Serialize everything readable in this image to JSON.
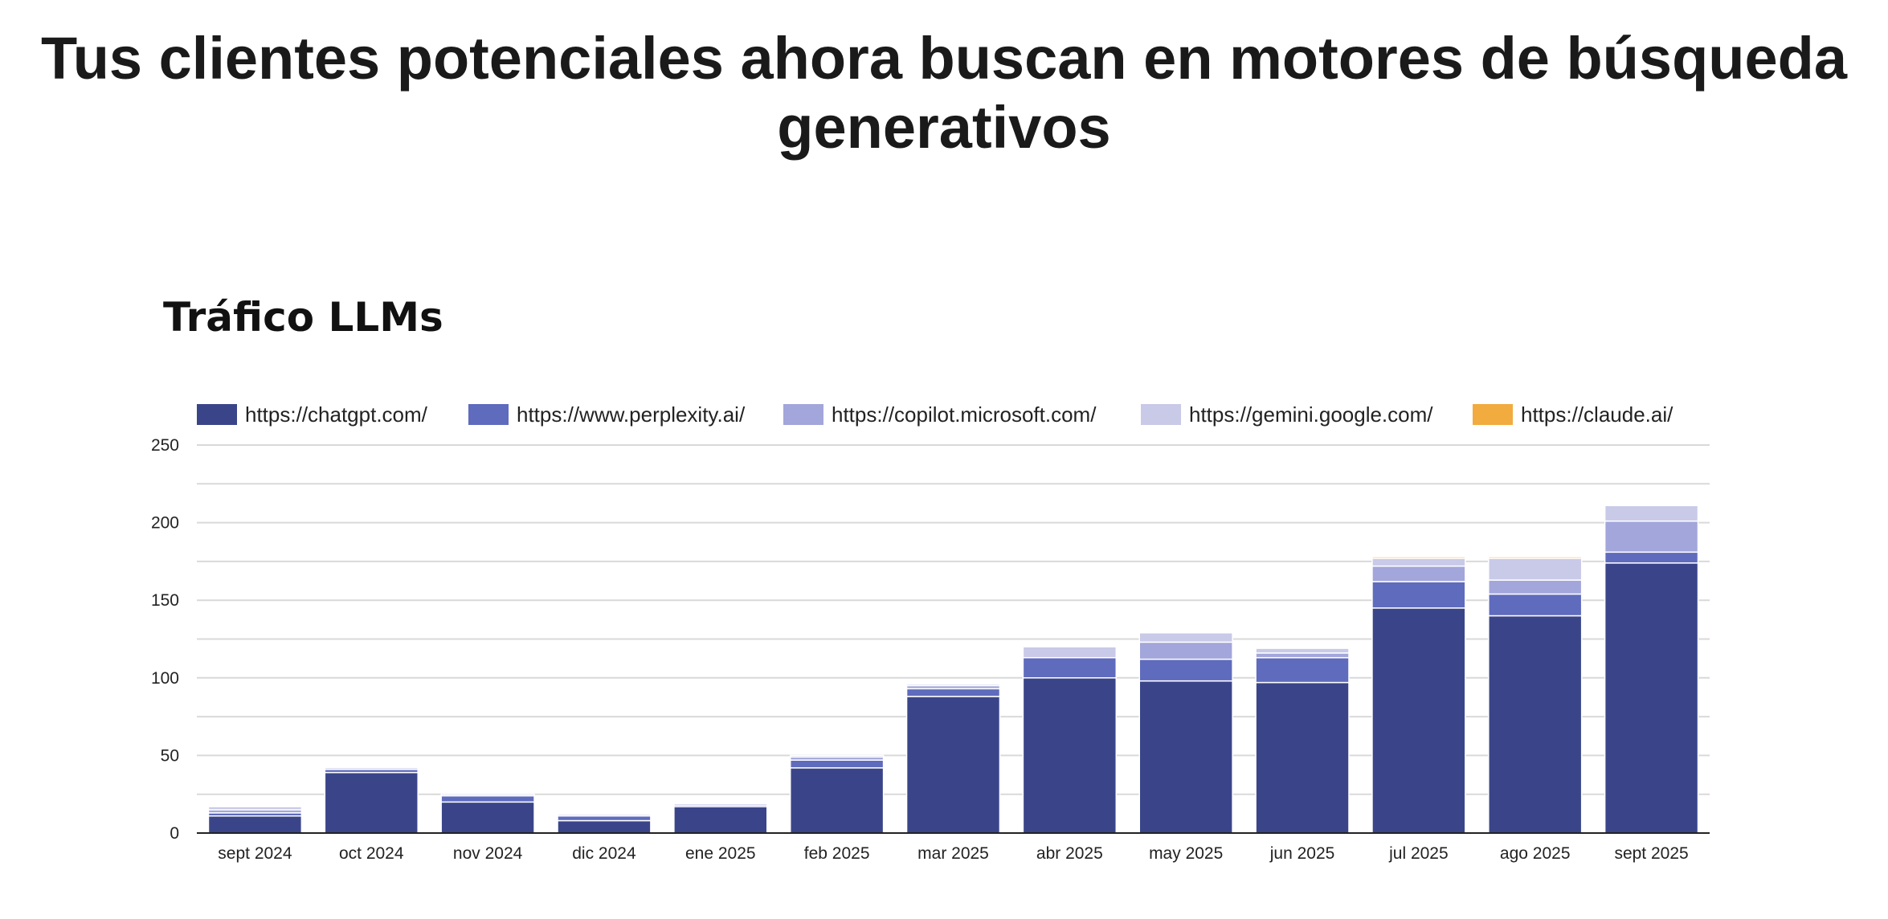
{
  "page": {
    "headline": "Tus clientes potenciales ahora buscan en motores de búsqueda generativos"
  },
  "chart_data": {
    "type": "bar",
    "stacked": true,
    "title": "Tráfico LLMs",
    "xlabel": "",
    "ylabel": "",
    "ylim": [
      0,
      250
    ],
    "yticks": [
      0,
      50,
      100,
      150,
      200,
      250
    ],
    "grid": true,
    "legend_position": "top",
    "categories": [
      "sept 2024",
      "oct 2024",
      "nov 2024",
      "dic 2024",
      "ene 2025",
      "feb 2025",
      "mar 2025",
      "abr 2025",
      "may 2025",
      "jun 2025",
      "jul 2025",
      "ago 2025",
      "sept 2025"
    ],
    "series": [
      {
        "name": "https://chatgpt.com/",
        "color": "#3a4589",
        "values": [
          11,
          39,
          20,
          8,
          17,
          42,
          88,
          100,
          98,
          97,
          145,
          140,
          174
        ]
      },
      {
        "name": "https://www.perplexity.ai/",
        "color": "#5f6bbd",
        "values": [
          2,
          2,
          4,
          3,
          1,
          5,
          5,
          13,
          14,
          16,
          17,
          14,
          7
        ]
      },
      {
        "name": "https://copilot.microsoft.com/",
        "color": "#a2a6da",
        "values": [
          2,
          1,
          0,
          0,
          1,
          2,
          2,
          0,
          11,
          3,
          10,
          9,
          20
        ]
      },
      {
        "name": "https://gemini.google.com/",
        "color": "#c9c9e8",
        "values": [
          2,
          0,
          1,
          1,
          0,
          1,
          1,
          7,
          6,
          3,
          5,
          14,
          10
        ]
      },
      {
        "name": "https://claude.ai/",
        "color": "#f2ab3f",
        "values": [
          0,
          0,
          0,
          0,
          0,
          0,
          0,
          0,
          0,
          0,
          1,
          1,
          0
        ]
      }
    ]
  }
}
